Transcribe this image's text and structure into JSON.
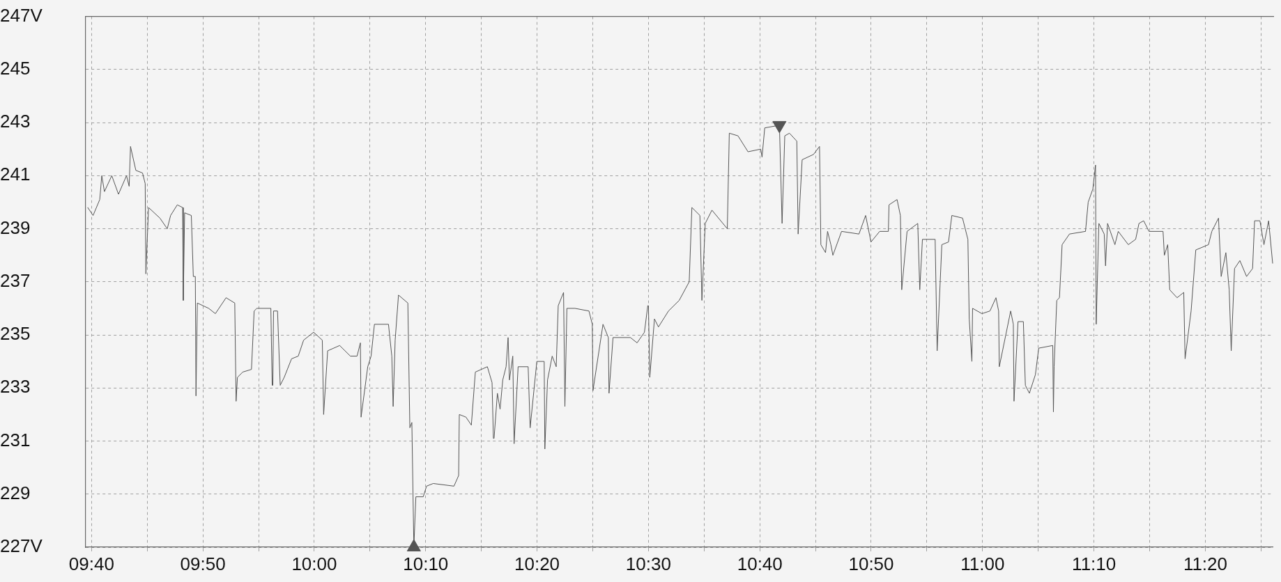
{
  "chart_data": {
    "type": "line",
    "xlim": [
      9.658,
      11.434
    ],
    "ylim": [
      227,
      247
    ],
    "xticks": [
      {
        "value": 9.6667,
        "label": "09:40"
      },
      {
        "value": 9.75,
        "label": null
      },
      {
        "value": 9.8333,
        "label": "09:50"
      },
      {
        "value": 9.9167,
        "label": null
      },
      {
        "value": 10,
        "label": "10:00"
      },
      {
        "value": 10.0833,
        "label": null
      },
      {
        "value": 10.1667,
        "label": "10:10"
      },
      {
        "value": 10.25,
        "label": null
      },
      {
        "value": 10.3333,
        "label": "10:20"
      },
      {
        "value": 10.4167,
        "label": null
      },
      {
        "value": 10.5,
        "label": "10:30"
      },
      {
        "value": 10.5833,
        "label": null
      },
      {
        "value": 10.6667,
        "label": "10:40"
      },
      {
        "value": 10.75,
        "label": null
      },
      {
        "value": 10.8333,
        "label": "10:50"
      },
      {
        "value": 10.9167,
        "label": null
      },
      {
        "value": 11,
        "label": "11:00"
      },
      {
        "value": 11.0833,
        "label": null
      },
      {
        "value": 11.1667,
        "label": "11:10"
      },
      {
        "value": 11.25,
        "label": null
      },
      {
        "value": 11.3333,
        "label": "11:20"
      },
      {
        "value": 11.4167,
        "label": null
      }
    ],
    "yticks": [
      {
        "value": 227,
        "label": "227V"
      },
      229,
      231,
      233,
      235,
      237,
      239,
      241,
      243,
      245,
      {
        "value": 247,
        "label": "247V"
      }
    ],
    "grid": true,
    "legend": false,
    "series": [
      {
        "color": "#555555",
        "marker": "none",
        "line_style": "solid",
        "x": [
          9.661,
          9.669,
          9.679,
          9.682,
          9.686,
          9.697,
          9.707,
          9.719,
          9.723,
          9.725,
          9.733,
          9.743,
          9.747,
          9.748,
          9.752,
          9.769,
          9.78,
          9.785,
          9.795,
          9.803,
          9.804,
          9.806,
          9.816,
          9.819,
          9.822,
          9.823,
          9.825,
          9.842,
          9.852,
          9.868,
          9.881,
          9.883,
          9.885,
          9.893,
          9.906,
          9.91,
          9.914,
          9.935,
          9.937,
          9.938,
          9.939,
          9.945,
          9.949,
          9.955,
          9.966,
          9.976,
          9.984,
          9.999,
          10.012,
          10.014,
          10.02,
          10.038,
          10.054,
          10.064,
          10.069,
          10.07,
          10.08,
          10.085,
          10.09,
          10.111,
          10.116,
          10.118,
          10.121,
          10.126,
          10.14,
          10.143,
          10.146,
          10.149,
          10.152,
          10.163,
          10.168,
          10.178,
          10.209,
          10.216,
          10.217,
          10.227,
          10.235,
          10.241,
          10.259,
          10.266,
          10.268,
          10.269,
          10.274,
          10.278,
          10.282,
          10.287,
          10.29,
          10.292,
          10.297,
          10.299,
          10.305,
          10.32,
          10.323,
          10.333,
          10.344,
          10.345,
          10.349,
          10.356,
          10.362,
          10.365,
          10.373,
          10.375,
          10.378,
          10.39,
          10.411,
          10.416,
          10.417,
          10.432,
          10.44,
          10.441,
          10.447,
          10.473,
          10.483,
          10.494,
          10.499,
          10.5,
          10.502,
          10.509,
          10.515,
          10.53,
          10.546,
          10.561,
          10.565,
          10.577,
          10.58,
          10.585,
          10.595,
          10.618,
          10.621,
          10.634,
          10.649,
          10.668,
          10.67,
          10.674,
          10.696,
          10.7,
          10.704,
          10.711,
          10.722,
          10.724,
          10.73,
          10.747,
          10.756,
          10.758,
          10.765,
          10.768,
          10.773,
          10.776,
          10.789,
          10.815,
          10.825,
          10.833,
          10.846,
          10.859,
          10.86,
          10.872,
          10.877,
          10.879,
          10.887,
          10.903,
          10.906,
          10.91,
          10.929,
          10.932,
          10.939,
          10.949,
          10.954,
          10.97,
          10.978,
          10.98,
          10.984,
          10.985,
          10.999,
          11.011,
          11.02,
          11.024,
          11.025,
          11.042,
          11.046,
          11.047,
          11.053,
          11.061,
          11.064,
          11.07,
          11.079,
          11.084,
          11.105,
          11.106,
          11.107,
          11.111,
          11.115,
          11.119,
          11.13,
          11.154,
          11.158,
          11.165,
          11.169,
          11.17,
          11.174,
          11.182,
          11.184,
          11.187,
          11.198,
          11.203,
          11.218,
          11.229,
          11.234,
          11.241,
          11.249,
          11.27,
          11.272,
          11.277,
          11.28,
          11.291,
          11.301,
          11.303,
          11.312,
          11.319,
          11.338,
          11.343,
          11.353,
          11.357,
          11.364,
          11.369,
          11.372,
          11.377,
          11.385,
          11.395,
          11.404,
          11.407,
          11.415,
          11.421,
          11.428,
          11.434
        ],
        "values": [
          239.8,
          239.5,
          240.1,
          241.0,
          240.4,
          241.0,
          240.3,
          241.0,
          240.6,
          242.1,
          241.2,
          241.1,
          240.7,
          237.3,
          239.8,
          239.4,
          239.0,
          239.5,
          239.9,
          239.8,
          236.3,
          239.6,
          239.5,
          237.2,
          237.2,
          232.7,
          236.2,
          236.0,
          235.8,
          236.4,
          236.2,
          232.5,
          233.4,
          233.6,
          233.7,
          235.9,
          236.0,
          236.0,
          233.1,
          233.1,
          235.9,
          235.9,
          233.1,
          233.4,
          234.1,
          234.2,
          234.8,
          235.1,
          234.8,
          232.0,
          234.4,
          234.6,
          234.2,
          234.2,
          234.7,
          231.9,
          233.8,
          234.2,
          235.4,
          235.4,
          234.2,
          232.3,
          234.8,
          236.5,
          236.2,
          231.5,
          231.7,
          227.0,
          228.9,
          228.9,
          229.3,
          229.4,
          229.3,
          229.7,
          232.0,
          231.9,
          231.6,
          233.6,
          233.8,
          233.2,
          231.1,
          231.1,
          232.8,
          232.2,
          233.3,
          233.8,
          234.9,
          233.3,
          234.2,
          230.9,
          233.8,
          233.8,
          231.5,
          234.0,
          234.0,
          230.7,
          233.3,
          234.2,
          233.8,
          236.1,
          236.6,
          232.3,
          236.0,
          236.0,
          235.9,
          235.4,
          232.9,
          235.4,
          234.9,
          232.8,
          234.9,
          234.9,
          234.7,
          235.1,
          236.1,
          236.1,
          233.4,
          235.6,
          235.3,
          235.9,
          236.3,
          237.0,
          239.8,
          239.5,
          236.3,
          239.2,
          239.7,
          239.0,
          242.6,
          242.5,
          241.9,
          242.0,
          241.7,
          242.8,
          242.9,
          239.2,
          242.5,
          242.6,
          242.3,
          238.8,
          241.6,
          241.8,
          242.1,
          238.4,
          238.1,
          238.9,
          238.4,
          238.0,
          238.9,
          238.8,
          239.5,
          238.5,
          238.9,
          238.9,
          239.9,
          240.1,
          239.5,
          236.7,
          238.9,
          239.2,
          236.7,
          238.6,
          238.6,
          234.4,
          238.4,
          238.5,
          239.5,
          239.4,
          238.6,
          235.6,
          234.0,
          236.0,
          235.8,
          235.9,
          236.4,
          235.9,
          233.8,
          235.9,
          235.4,
          232.5,
          235.5,
          235.5,
          233.1,
          232.8,
          233.5,
          234.5,
          234.6,
          232.1,
          233.8,
          236.3,
          236.4,
          238.4,
          238.8,
          238.9,
          240.0,
          240.5,
          241.4,
          235.4,
          239.2,
          238.8,
          237.6,
          239.2,
          238.4,
          238.9,
          238.4,
          238.6,
          239.2,
          239.3,
          238.9,
          238.9,
          238.0,
          238.4,
          236.7,
          236.4,
          236.6,
          234.1,
          235.9,
          238.2,
          238.4,
          238.9,
          239.4,
          237.2,
          238.1,
          236.7,
          234.4,
          237.5,
          237.8,
          237.2,
          237.5,
          239.3,
          239.3,
          238.4,
          239.3,
          237.7
        ]
      },
      {
        "type": "scatter",
        "color": "#555555",
        "marker": "triangle",
        "x": [
          10.149,
          10.696
        ],
        "values": [
          227.0,
          242.9
        ]
      }
    ]
  }
}
